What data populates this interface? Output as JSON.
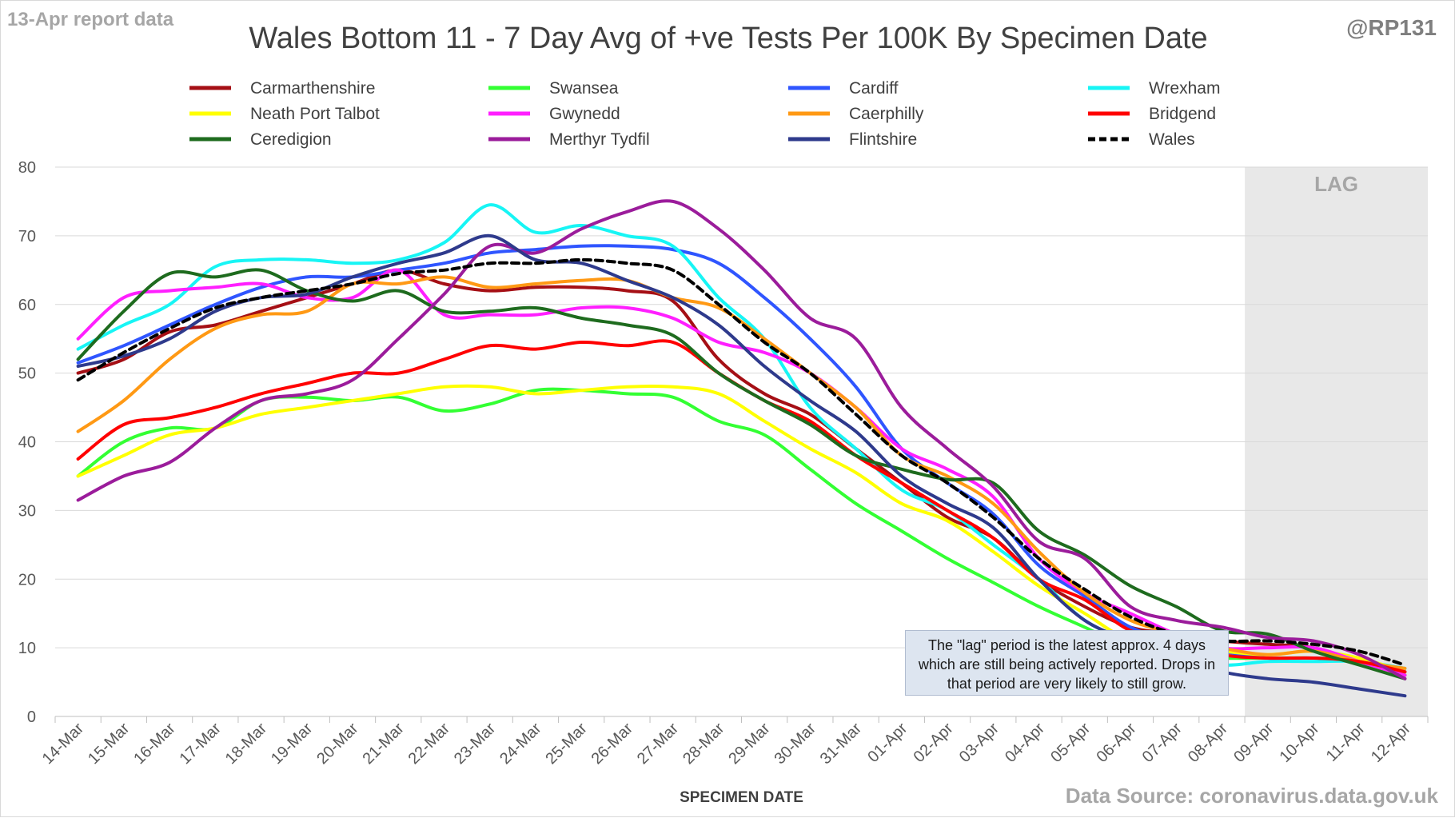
{
  "header": {
    "report_label": "13-Apr report data",
    "handle": "@RP131",
    "source": "Data Source: coronavirus.data.gov.uk"
  },
  "note": "The \"lag\" period is the latest approx. 4 days which are still being actively reported.  Drops in that period are very likely to still grow.",
  "chart_data": {
    "type": "line",
    "title": "Wales Bottom 11 - 7 Day Avg of +ve Tests Per 100K By Specimen Date",
    "xlabel": "SPECIMEN DATE",
    "ylabel": "",
    "ylim": [
      0,
      80
    ],
    "yticks": [
      0,
      10,
      20,
      30,
      40,
      50,
      60,
      70,
      80
    ],
    "grid": "horizontal",
    "legend_position": "top",
    "lag_label": "LAG",
    "lag_range": [
      "09-Apr",
      "12-Apr"
    ],
    "categories": [
      "14-Mar",
      "15-Mar",
      "16-Mar",
      "17-Mar",
      "18-Mar",
      "19-Mar",
      "20-Mar",
      "21-Mar",
      "22-Mar",
      "23-Mar",
      "24-Mar",
      "25-Mar",
      "26-Mar",
      "27-Mar",
      "28-Mar",
      "29-Mar",
      "30-Mar",
      "31-Mar",
      "01-Apr",
      "02-Apr",
      "03-Apr",
      "04-Apr",
      "05-Apr",
      "06-Apr",
      "07-Apr",
      "08-Apr",
      "09-Apr",
      "10-Apr",
      "11-Apr",
      "12-Apr"
    ],
    "series": [
      {
        "name": "Carmarthenshire",
        "color": "#a50f15",
        "dashed": false,
        "values": [
          50,
          52,
          56,
          57,
          59,
          61,
          63,
          65,
          63,
          62,
          62.5,
          62.5,
          62,
          60.5,
          52,
          47,
          44,
          39,
          34,
          29,
          26,
          20,
          16,
          13,
          12,
          11,
          10.5,
          10,
          8,
          6
        ]
      },
      {
        "name": "Swansea",
        "color": "#33ff33",
        "dashed": false,
        "values": [
          35,
          40,
          42,
          42,
          46,
          46.5,
          46,
          46.5,
          44.5,
          45.5,
          47.5,
          47.5,
          47,
          46.5,
          43,
          41,
          36,
          31,
          27,
          23,
          19.5,
          16,
          13,
          10,
          9,
          8.5,
          8.5,
          8.5,
          8,
          6.5
        ]
      },
      {
        "name": "Cardiff",
        "color": "#2f55ff",
        "dashed": false,
        "values": [
          51.5,
          54,
          57,
          60,
          62.5,
          64,
          64,
          65,
          66,
          67.5,
          68,
          68.5,
          68.5,
          68,
          66,
          61,
          55,
          48,
          39,
          34,
          29.5,
          22,
          17.5,
          13,
          11,
          9.5,
          8.5,
          8.5,
          8,
          6.5
        ]
      },
      {
        "name": "Wrexham",
        "color": "#17f5f5",
        "dashed": false,
        "values": [
          53.5,
          57,
          60,
          65.5,
          66.5,
          66.5,
          66,
          66.5,
          69,
          74.5,
          70.5,
          71.5,
          70,
          68.5,
          61,
          55,
          45,
          39,
          33,
          30,
          25,
          20,
          14,
          11,
          9,
          7.5,
          8,
          8,
          8,
          7
        ]
      },
      {
        "name": "Neath Port Talbot",
        "color": "#ffff00",
        "dashed": false,
        "values": [
          35,
          38,
          41,
          42,
          44,
          45,
          46,
          47,
          48,
          48,
          47,
          47.5,
          48,
          48,
          47,
          43,
          39,
          35.5,
          31,
          28.5,
          24,
          19,
          15,
          11,
          10,
          9.5,
          9,
          9.5,
          8.5,
          6.5
        ]
      },
      {
        "name": "Gwynedd",
        "color": "#ff1fff",
        "dashed": false,
        "values": [
          55,
          61,
          62,
          62.5,
          63,
          61,
          61,
          65,
          58.5,
          58.5,
          58.5,
          59.5,
          59.5,
          58,
          54.5,
          53,
          50,
          45,
          39,
          36,
          32,
          23,
          18,
          15,
          12,
          10,
          10,
          10,
          8,
          6
        ]
      },
      {
        "name": "Caerphilly",
        "color": "#ff9914",
        "dashed": false,
        "values": [
          41.5,
          46,
          52,
          56.5,
          58.5,
          59,
          63,
          63,
          64,
          62.5,
          63,
          63.5,
          63.5,
          61,
          59.5,
          55,
          50,
          45,
          38,
          35,
          31,
          24,
          18,
          14,
          12,
          10,
          9,
          9.5,
          8,
          7
        ]
      },
      {
        "name": "Bridgend",
        "color": "#ff0000",
        "dashed": false,
        "values": [
          37.5,
          42.5,
          43.5,
          45,
          47,
          48.5,
          50,
          50,
          52,
          54,
          53.5,
          54.5,
          54,
          54.5,
          50,
          46,
          43,
          38,
          34,
          30,
          26,
          20,
          17,
          12.5,
          11,
          9,
          8.5,
          8.5,
          8,
          6.5
        ]
      },
      {
        "name": "Ceredigion",
        "color": "#1e6b1e",
        "dashed": false,
        "values": [
          52,
          59,
          64.5,
          64,
          65,
          62,
          60.5,
          62,
          59,
          59,
          59.5,
          58,
          57,
          55.5,
          50,
          46,
          42.5,
          38,
          36,
          34.5,
          34,
          27,
          23.5,
          19,
          16,
          12.5,
          12,
          9.5,
          7.5,
          5.5
        ]
      },
      {
        "name": "Merthyr Tydfil",
        "color": "#9b1c9b",
        "dashed": false,
        "values": [
          31.5,
          35,
          37,
          42,
          46,
          47,
          49,
          55,
          61.5,
          68.5,
          67.5,
          71,
          73.5,
          75,
          71,
          65,
          58,
          55,
          45,
          39,
          33.5,
          25.5,
          23,
          16,
          14,
          13,
          11.5,
          11,
          9,
          5.5
        ]
      },
      {
        "name": "Flintshire",
        "color": "#2e3a8c",
        "dashed": false,
        "values": [
          51,
          52.5,
          55,
          59,
          61,
          61.5,
          64,
          66,
          67.5,
          70,
          66.5,
          66,
          63.5,
          61,
          57,
          51,
          46,
          41.5,
          35,
          31,
          27.5,
          20,
          14,
          11,
          8.5,
          6.5,
          5.5,
          5,
          4,
          3
        ]
      },
      {
        "name": "Wales",
        "color": "#000000",
        "dashed": true,
        "values": [
          49,
          53,
          56.5,
          59.5,
          61,
          62,
          63,
          64.5,
          65,
          66,
          66,
          66.5,
          66,
          65,
          60,
          54.5,
          50,
          44,
          38,
          34,
          29,
          23,
          18.5,
          14.5,
          12,
          11,
          11,
          10.5,
          9.5,
          7.5
        ]
      }
    ]
  }
}
